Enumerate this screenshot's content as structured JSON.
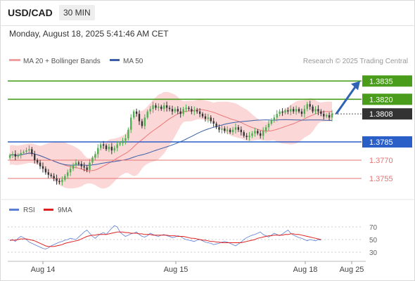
{
  "header": {
    "symbol": "USD/CAD",
    "interval": "30 MIN"
  },
  "timestamp": "Monday, August 18, 2025 5:41:46 AM CET",
  "legend": {
    "bollinger": "MA 20 + Bollinger Bands",
    "ma50": "MA 50",
    "credit": "Research © 2025 Trading Central",
    "rsi": "RSI",
    "rsi_ma": "9MA"
  },
  "colors": {
    "up": "#4caf50",
    "down": "#333333",
    "band": "#f9c9c9",
    "ma20": "#ef7777",
    "ma50": "#3a5fa8",
    "resistance": "#4a9c1b",
    "support": "#2a5fc7",
    "minor": "#e57373",
    "arrow": "#2f63b4",
    "rsi": "#5b7fd6",
    "rsi_ma": "#e02020"
  },
  "chart_data": [
    {
      "type": "candlestick",
      "symbol": "USD/CAD",
      "timeframe": "30 MIN",
      "x_tick_labels": [
        "Aug 14",
        "Aug 15",
        "Aug 18",
        "Aug 25"
      ],
      "ylim": [
        1.374,
        1.3845
      ],
      "last_price": 1.3808,
      "levels": [
        {
          "value": 1.3835,
          "label": "1.3835",
          "kind": "resistance"
        },
        {
          "value": 1.382,
          "label": "1.3820",
          "kind": "resistance"
        },
        {
          "value": 1.3808,
          "label": "1.3808",
          "kind": "price"
        },
        {
          "value": 1.3785,
          "label": "1.3785",
          "kind": "pivot"
        },
        {
          "value": 1.377,
          "label": "1.3770",
          "kind": "support"
        },
        {
          "value": 1.3755,
          "label": "1.3755",
          "kind": "support"
        }
      ],
      "target_arrow": {
        "from": 1.3808,
        "to": 1.3835
      },
      "closes": [
        1.3774,
        1.3775,
        1.3773,
        1.3774,
        1.3776,
        1.3777,
        1.3778,
        1.3779,
        1.3775,
        1.377,
        1.3768,
        1.3765,
        1.3763,
        1.376,
        1.3758,
        1.3757,
        1.3755,
        1.3753,
        1.3752,
        1.3754,
        1.3757,
        1.376,
        1.3763,
        1.3766,
        1.3768,
        1.3767,
        1.3765,
        1.3764,
        1.3762,
        1.3768,
        1.3772,
        1.3775,
        1.378,
        1.3783,
        1.3782,
        1.3779,
        1.3781,
        1.3778,
        1.378,
        1.3783,
        1.3784,
        1.3786,
        1.3788,
        1.3795,
        1.3805,
        1.381,
        1.3808,
        1.3802,
        1.3798,
        1.3805,
        1.381,
        1.3812,
        1.3815,
        1.3813,
        1.3814,
        1.3812,
        1.3815,
        1.3813,
        1.3812,
        1.381,
        1.3812,
        1.381,
        1.3808,
        1.3812,
        1.3813,
        1.3812,
        1.381,
        1.3811,
        1.381,
        1.3808,
        1.3806,
        1.3804,
        1.3805,
        1.3802,
        1.38,
        1.3797,
        1.3795,
        1.3796,
        1.3794,
        1.3795,
        1.3793,
        1.3795,
        1.3797,
        1.3795,
        1.3793,
        1.379,
        1.3789,
        1.379,
        1.3792,
        1.3794,
        1.3792,
        1.379,
        1.3794,
        1.3797,
        1.38,
        1.3803,
        1.3805,
        1.3808,
        1.381,
        1.3809,
        1.3811,
        1.381,
        1.3812,
        1.381,
        1.3812,
        1.381,
        1.3808,
        1.3812,
        1.3816,
        1.3814,
        1.381,
        1.3812,
        1.381,
        1.3808,
        1.3806,
        1.3807,
        1.3805,
        1.3808
      ]
    },
    {
      "type": "line",
      "title": "RSI",
      "series": [
        {
          "name": "RSI"
        },
        {
          "name": "9MA"
        }
      ],
      "y_tick_labels": [
        "70",
        "50",
        "30"
      ],
      "ylim": [
        20,
        80
      ],
      "rsi": [
        48,
        50,
        47,
        52,
        55,
        53,
        50,
        46,
        44,
        42,
        40,
        38,
        36,
        35,
        37,
        40,
        42,
        44,
        46,
        47,
        49,
        50,
        52,
        51,
        50,
        54,
        58,
        62,
        65,
        60,
        55,
        52,
        56,
        59,
        61,
        58,
        63,
        68,
        72,
        70,
        62,
        58,
        55,
        57,
        59,
        60,
        62,
        58,
        55,
        54,
        56,
        60,
        58,
        56,
        55,
        57,
        58,
        56,
        55,
        53,
        54,
        56,
        55,
        52,
        50,
        49,
        48,
        47,
        49,
        50,
        48,
        46,
        45,
        44,
        42,
        43,
        44,
        46,
        47,
        46,
        44,
        42,
        40,
        43,
        46,
        50,
        53,
        55,
        57,
        58,
        60,
        62,
        58,
        56,
        54,
        57,
        60,
        58,
        56,
        59,
        62,
        65,
        60,
        57,
        55,
        53,
        52,
        50,
        48,
        50,
        49,
        48,
        50,
        49
      ],
      "rsi_ma": [
        49,
        49,
        49,
        50,
        51,
        51,
        51,
        50,
        49,
        48,
        46,
        44,
        42,
        40,
        39,
        39,
        39,
        40,
        41,
        42,
        44,
        45,
        46,
        47,
        48,
        49,
        51,
        53,
        55,
        56,
        57,
        57,
        58,
        58,
        58,
        58,
        59,
        60,
        61,
        62,
        62,
        62,
        61,
        61,
        60,
        60,
        60,
        59,
        59,
        58,
        58,
        58,
        57,
        57,
        57,
        57,
        57,
        57,
        56,
        56,
        56,
        55,
        55,
        55,
        54,
        53,
        52,
        52,
        51,
        50,
        49,
        49,
        48,
        47,
        47,
        46,
        46,
        45,
        45,
        45,
        45,
        45,
        45,
        45,
        45,
        46,
        47,
        48,
        49,
        50,
        52,
        53,
        54,
        55,
        56,
        56,
        57,
        57,
        57,
        57,
        58,
        58,
        59,
        59,
        58,
        58,
        57,
        56,
        55,
        54,
        53,
        52,
        51,
        50
      ]
    }
  ]
}
